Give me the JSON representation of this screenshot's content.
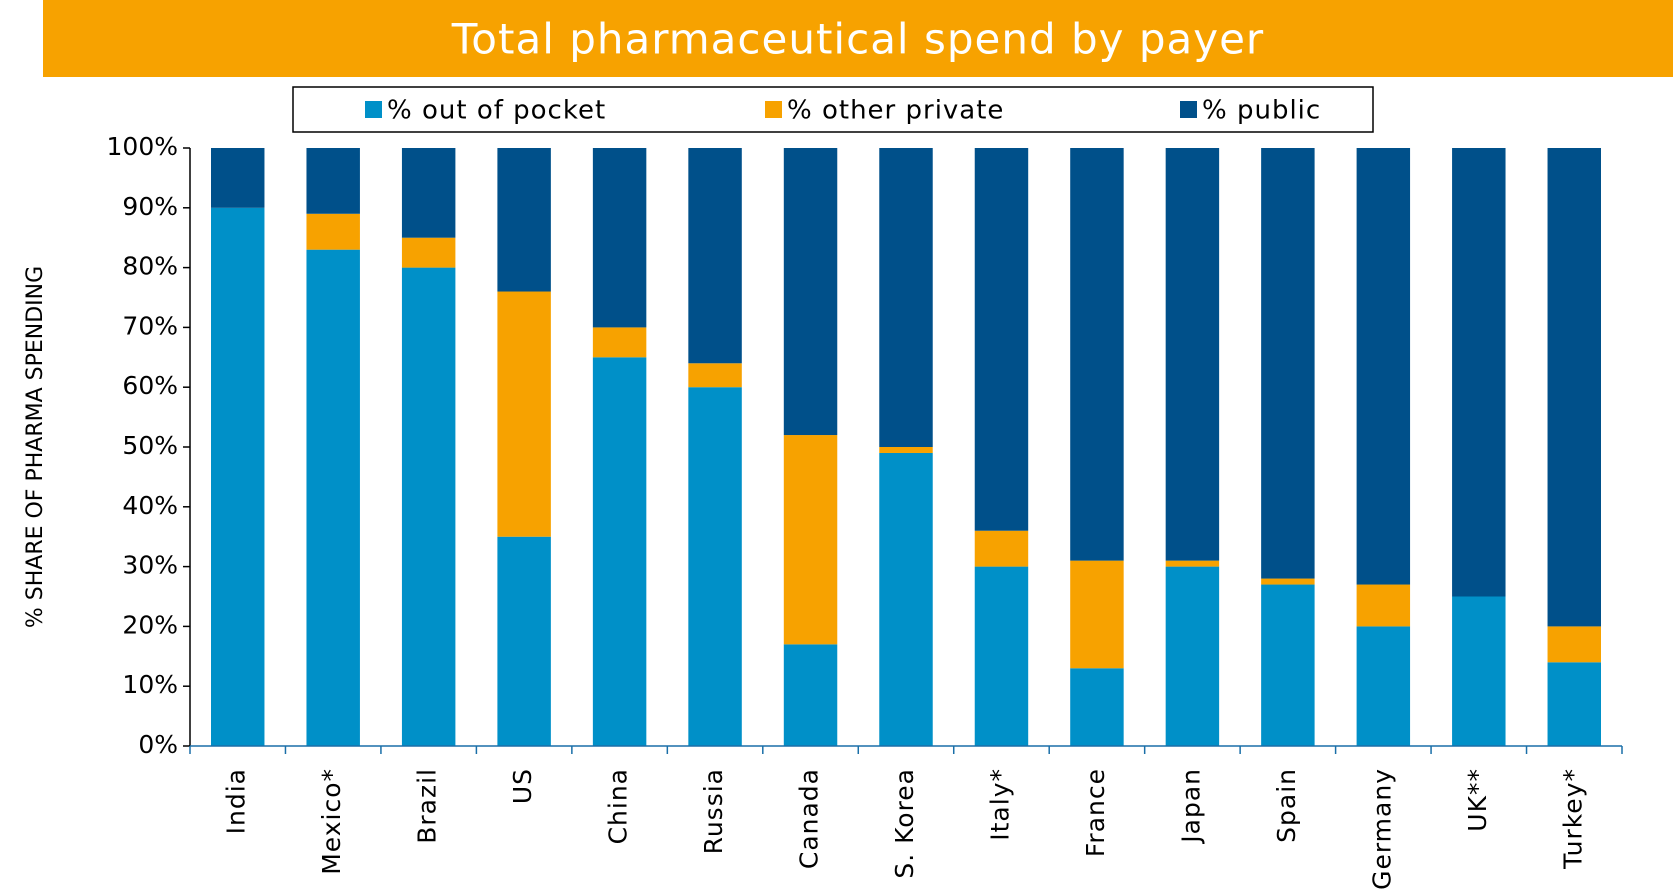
{
  "chart_data": {
    "type": "stacked_bar",
    "title": "Total pharmaceutical spend by payer",
    "y_label": "% SHARE OF PHARMA SPENDING",
    "categories": [
      "India",
      "Mexico*",
      "Brazil",
      "US",
      "China",
      "Russia",
      "Canada",
      "S. Korea",
      "Italy*",
      "France",
      "Japan",
      "Spain",
      "Germany",
      "UK**",
      "Turkey*"
    ],
    "series": [
      {
        "name": "% out of pocket",
        "color": "#0090c8",
        "values": [
          90,
          83,
          80,
          35,
          65,
          60,
          17,
          49,
          30,
          13,
          30,
          27,
          20,
          25,
          14
        ]
      },
      {
        "name": "% other private",
        "color": "#f7a200",
        "values": [
          0,
          6,
          5,
          41,
          5,
          4,
          35,
          1,
          6,
          18,
          1,
          1,
          7,
          0,
          6
        ]
      },
      {
        "name": "% public",
        "color": "#00508a",
        "values": [
          10,
          11,
          15,
          24,
          30,
          36,
          48,
          50,
          64,
          69,
          69,
          72,
          73,
          75,
          80
        ]
      }
    ],
    "ylim": [
      0,
      100
    ],
    "yticks": [
      {
        "value": 0,
        "label": "0%"
      },
      {
        "value": 10,
        "label": "10%"
      },
      {
        "value": 20,
        "label": "20%"
      },
      {
        "value": 30,
        "label": "30%"
      },
      {
        "value": 40,
        "label": "40%"
      },
      {
        "value": 50,
        "label": "50%"
      },
      {
        "value": 60,
        "label": "60%"
      },
      {
        "value": 70,
        "label": "70%"
      },
      {
        "value": 80,
        "label": "80%"
      },
      {
        "value": 90,
        "label": "90%"
      },
      {
        "value": 100,
        "label": "100%"
      }
    ],
    "legend": "top"
  }
}
